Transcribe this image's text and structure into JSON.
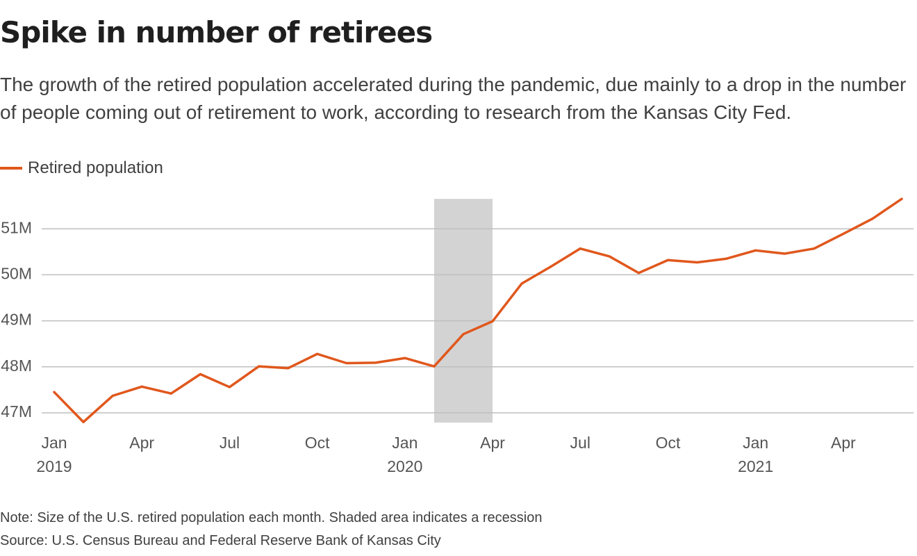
{
  "title": "Spike in number of retirees",
  "subtitle": "The growth of the retired population accelerated during the pandemic, due mainly to a drop in the number of people coming out of retirement to work, according to research from the Kansas City Fed.",
  "note": "Note: Size of the U.S. retired population each month. Shaded area indicates a recession",
  "source": "Source: U.S. Census Bureau and Federal Reserve Bank of Kansas City",
  "colors": {
    "line": "#e0571c",
    "recession": "#d3d3d3",
    "grid": "#bfbfbf",
    "axis_text": "#555555"
  },
  "chart_data": {
    "type": "line",
    "title": "Spike in number of retirees",
    "legend": {
      "placement": "top-left"
    },
    "grid": true,
    "x_ticks": [
      {
        "label": "Jan",
        "sublabel": "2019",
        "index": 0
      },
      {
        "label": "Apr",
        "sublabel": "",
        "index": 3
      },
      {
        "label": "Jul",
        "sublabel": "",
        "index": 6
      },
      {
        "label": "Oct",
        "sublabel": "",
        "index": 9
      },
      {
        "label": "Jan",
        "sublabel": "2020",
        "index": 12
      },
      {
        "label": "Apr",
        "sublabel": "",
        "index": 15
      },
      {
        "label": "Jul",
        "sublabel": "",
        "index": 18
      },
      {
        "label": "Oct",
        "sublabel": "",
        "index": 21
      },
      {
        "label": "Jan",
        "sublabel": "2021",
        "index": 24
      },
      {
        "label": "Apr",
        "sublabel": "",
        "index": 27
      }
    ],
    "y_ticks": [
      {
        "label": "47M",
        "value": 47
      },
      {
        "label": "48M",
        "value": 48
      },
      {
        "label": "49M",
        "value": 49
      },
      {
        "label": "50M",
        "value": 50
      },
      {
        "label": "51M",
        "value": 51
      }
    ],
    "ylim": [
      47,
      51.65
    ],
    "recession": {
      "start": "2020-02",
      "end": "2020-04"
    },
    "series": [
      {
        "name": "Retired population",
        "x": [
          "2019-01",
          "2019-02",
          "2019-03",
          "2019-04",
          "2019-05",
          "2019-06",
          "2019-07",
          "2019-08",
          "2019-09",
          "2019-10",
          "2019-11",
          "2019-12",
          "2020-01",
          "2020-02",
          "2020-03",
          "2020-04",
          "2020-05",
          "2020-06",
          "2020-07",
          "2020-08",
          "2020-09",
          "2020-10",
          "2020-11",
          "2020-12",
          "2021-01",
          "2021-02",
          "2021-03",
          "2021-04",
          "2021-05",
          "2021-06"
        ],
        "values": [
          47.45,
          46.8,
          47.37,
          47.57,
          47.42,
          47.84,
          47.56,
          48.01,
          47.97,
          48.28,
          48.08,
          48.09,
          48.19,
          48.01,
          48.71,
          48.99,
          49.81,
          50.18,
          50.57,
          50.4,
          50.04,
          50.32,
          50.27,
          50.35,
          50.53,
          50.46,
          50.57,
          50.89,
          51.22,
          51.65
        ]
      }
    ]
  }
}
